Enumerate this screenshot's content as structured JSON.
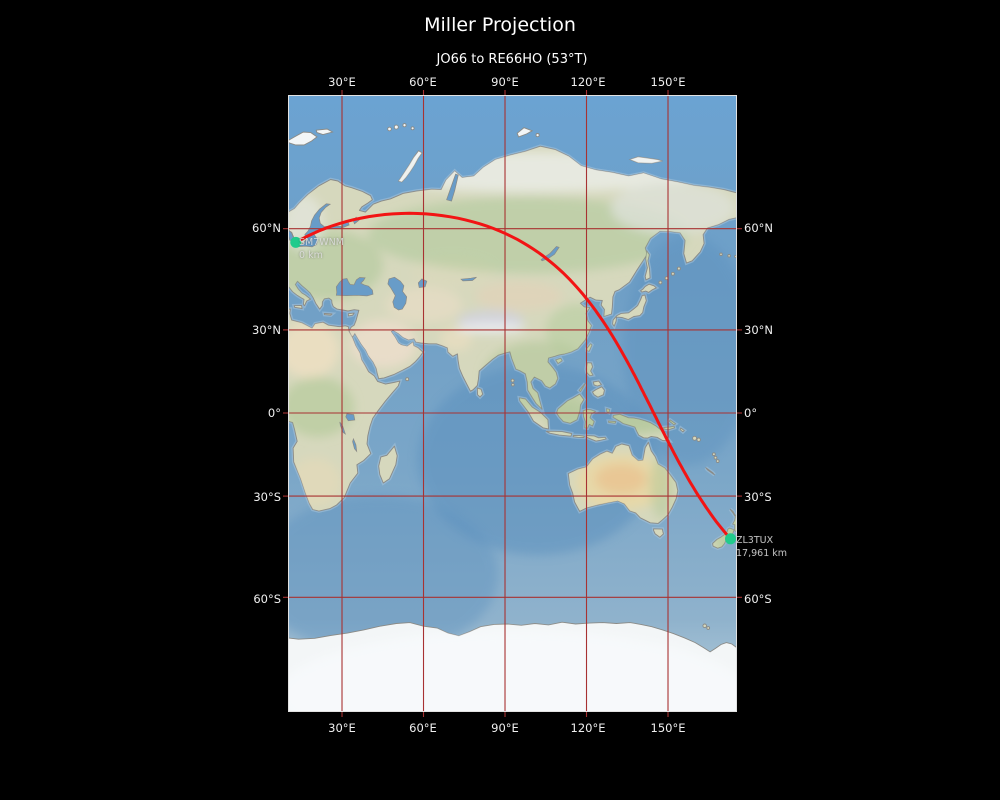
{
  "title": "Miller Projection",
  "subtitle": "JO66 to RE66HO (53°T)",
  "axes": {
    "top": [
      "30°E",
      "60°E",
      "90°E",
      "120°E",
      "150°E"
    ],
    "bottom": [
      "30°E",
      "60°E",
      "90°E",
      "120°E",
      "150°E"
    ],
    "left": [
      "60°N",
      "30°N",
      "0°",
      "30°S",
      "60°S"
    ],
    "right": [
      "60°N",
      "30°N",
      "0°",
      "30°S",
      "60°S"
    ]
  },
  "markers": {
    "start": {
      "callsign": "SM7WNM",
      "distance": "0 km"
    },
    "end": {
      "callsign": "ZL3TUX",
      "distance": "17,961 km"
    }
  },
  "route": {
    "from": "JO66",
    "to": "RE66HO",
    "bearing": "53°T",
    "distance": "17,961 km"
  },
  "colors": {
    "background": "#000000",
    "title_text": "#ffffff",
    "tick_text": "#f0f0f0",
    "marker_label_text": "#d9d9d9",
    "grid": "#a83232",
    "route": "#f21414",
    "marker": "#21cb8c",
    "ocean": "#6fa0c8",
    "ocean_deep": "#5a8fbd",
    "land": "#d6d8bd",
    "ice": "#f3f6f7",
    "coast": "#8a8a86",
    "lake": "#689cc8",
    "spine": "#e2e2e2"
  }
}
